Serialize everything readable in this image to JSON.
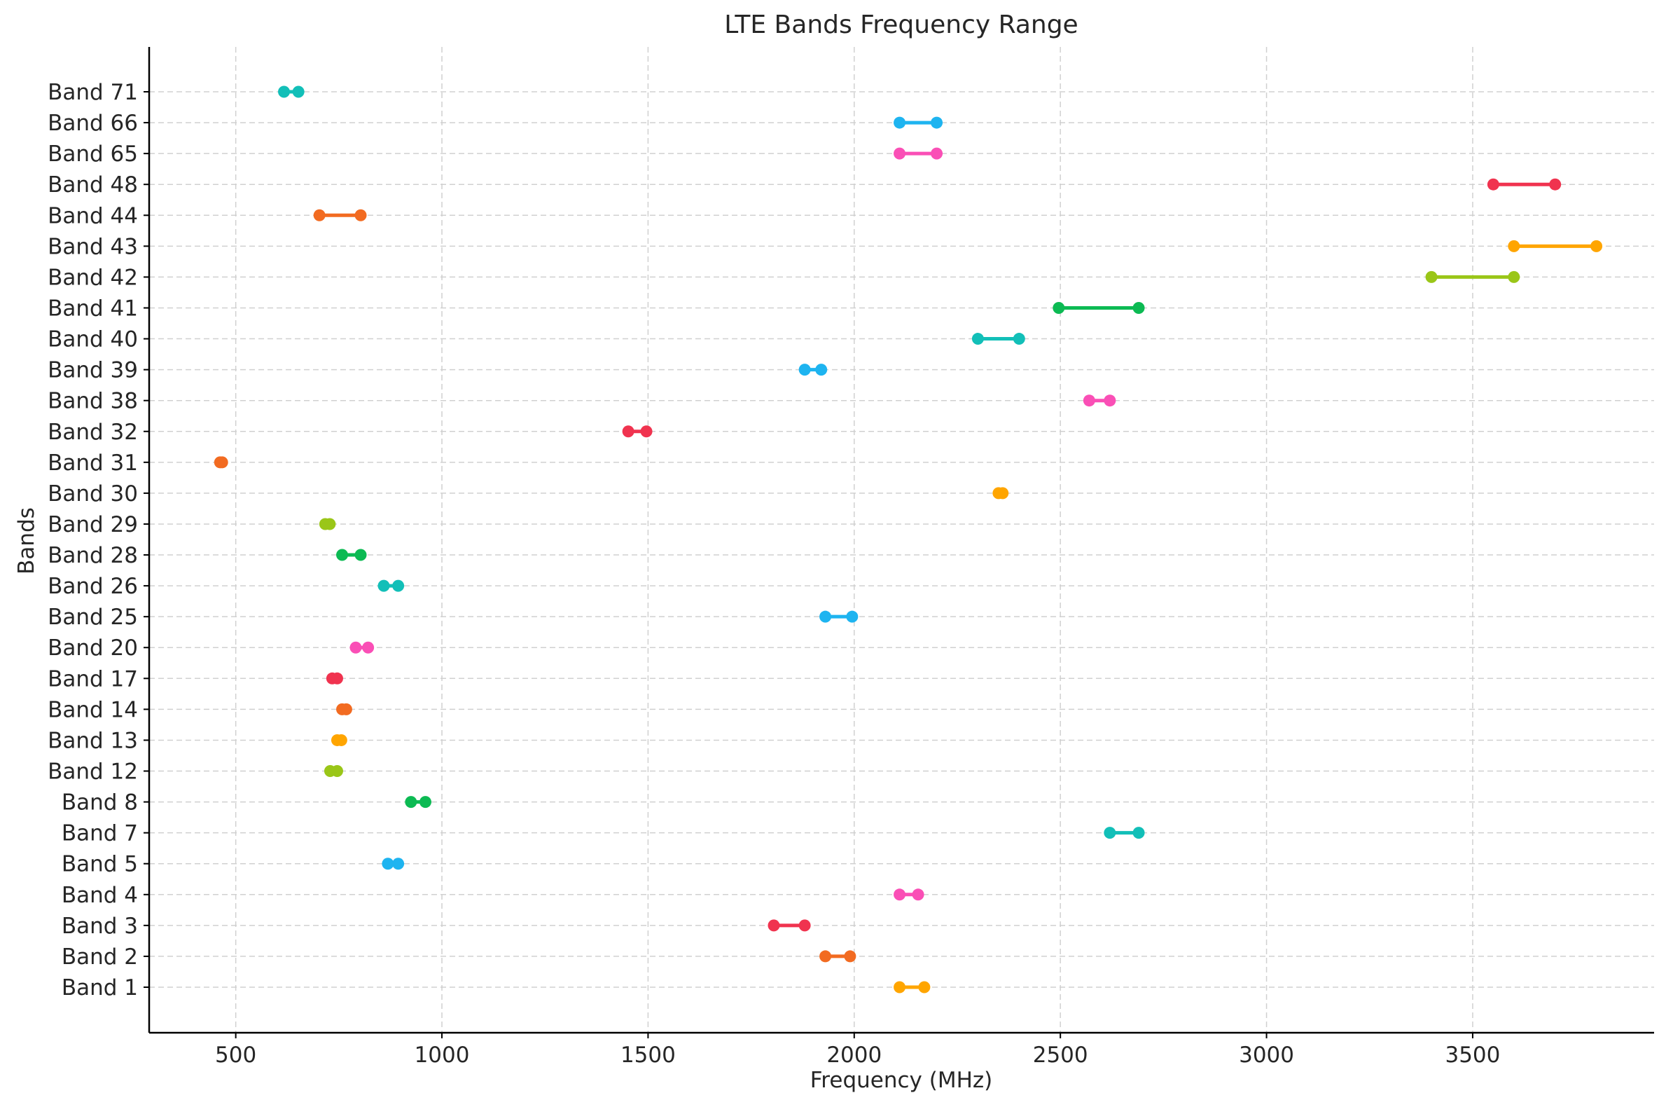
{
  "chart_data": {
    "type": "dumbbell",
    "title": "LTE Bands Frequency Range",
    "xlabel": "Frequency (MHz)",
    "ylabel": "Bands",
    "xlim": [
      290,
      3940
    ],
    "xticks": [
      500,
      1000,
      1500,
      2000,
      2500,
      3000,
      3500
    ],
    "grid": true,
    "series": [
      {
        "band": "Band 1",
        "low": 2110,
        "high": 2170,
        "color": "#FFA500"
      },
      {
        "band": "Band 2",
        "low": 1930,
        "high": 1990,
        "color": "#F26B21"
      },
      {
        "band": "Band 3",
        "low": 1805,
        "high": 1880,
        "color": "#F0334F"
      },
      {
        "band": "Band 4",
        "low": 2110,
        "high": 2155,
        "color": "#FA4FB6"
      },
      {
        "band": "Band 5",
        "low": 869,
        "high": 894,
        "color": "#1EB4F0"
      },
      {
        "band": "Band 7",
        "low": 2620,
        "high": 2690,
        "color": "#12BFB8"
      },
      {
        "band": "Band 8",
        "low": 925,
        "high": 960,
        "color": "#0CBA53"
      },
      {
        "band": "Band 12",
        "low": 729,
        "high": 746,
        "color": "#9AC618"
      },
      {
        "band": "Band 13",
        "low": 746,
        "high": 756,
        "color": "#FFA500"
      },
      {
        "band": "Band 14",
        "low": 758,
        "high": 768,
        "color": "#F26B21"
      },
      {
        "band": "Band 17",
        "low": 734,
        "high": 746,
        "color": "#F0334F"
      },
      {
        "band": "Band 20",
        "low": 791,
        "high": 821,
        "color": "#FA4FB6"
      },
      {
        "band": "Band 25",
        "low": 1930,
        "high": 1995,
        "color": "#1EB4F0"
      },
      {
        "band": "Band 26",
        "low": 859,
        "high": 894,
        "color": "#12BFB8"
      },
      {
        "band": "Band 28",
        "low": 758,
        "high": 803,
        "color": "#0CBA53"
      },
      {
        "band": "Band 29",
        "low": 717,
        "high": 728,
        "color": "#9AC618"
      },
      {
        "band": "Band 30",
        "low": 2350,
        "high": 2360,
        "color": "#FFA500"
      },
      {
        "band": "Band 31",
        "low": 462,
        "high": 467,
        "color": "#F26B21"
      },
      {
        "band": "Band 32",
        "low": 1452,
        "high": 1496,
        "color": "#F0334F"
      },
      {
        "band": "Band 38",
        "low": 2570,
        "high": 2620,
        "color": "#FA4FB6"
      },
      {
        "band": "Band 39",
        "low": 1880,
        "high": 1920,
        "color": "#1EB4F0"
      },
      {
        "band": "Band 40",
        "low": 2300,
        "high": 2400,
        "color": "#12BFB8"
      },
      {
        "band": "Band 41",
        "low": 2496,
        "high": 2690,
        "color": "#0CBA53"
      },
      {
        "band": "Band 42",
        "low": 3400,
        "high": 3600,
        "color": "#9AC618"
      },
      {
        "band": "Band 43",
        "low": 3600,
        "high": 3800,
        "color": "#FFA500"
      },
      {
        "band": "Band 44",
        "low": 703,
        "high": 803,
        "color": "#F26B21"
      },
      {
        "band": "Band 48",
        "low": 3550,
        "high": 3700,
        "color": "#F0334F"
      },
      {
        "band": "Band 65",
        "low": 2110,
        "high": 2200,
        "color": "#FA4FB6"
      },
      {
        "band": "Band 66",
        "low": 2110,
        "high": 2200,
        "color": "#1EB4F0"
      },
      {
        "band": "Band 71",
        "low": 617,
        "high": 652,
        "color": "#12BFB8"
      }
    ]
  }
}
